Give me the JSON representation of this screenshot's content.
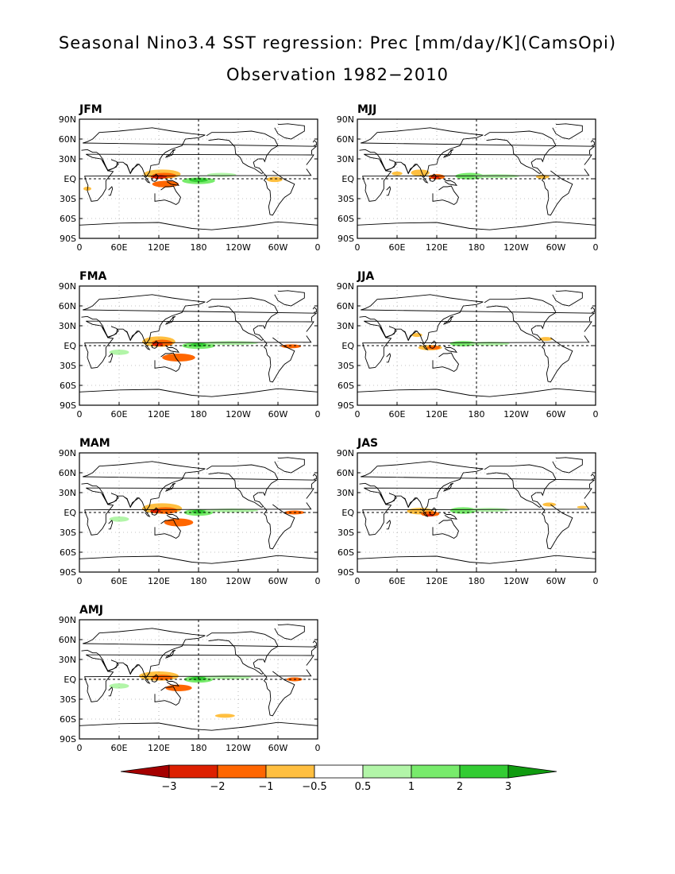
{
  "title": "Seasonal Nino3.4 SST regression: Prec [mm/day/K](CamsOpi)",
  "subtitle": "Observation 1982−2010",
  "lat_labels": [
    "90N",
    "60N",
    "30N",
    "EQ",
    "30S",
    "60S",
    "90S"
  ],
  "lon_labels": [
    "0",
    "60E",
    "120E",
    "180",
    "120W",
    "60W",
    "0"
  ],
  "panels": [
    {
      "season": "JFM"
    },
    {
      "season": "MJJ"
    },
    {
      "season": "FMA"
    },
    {
      "season": "JJA"
    },
    {
      "season": "MAM"
    },
    {
      "season": "JAS"
    },
    {
      "season": "AMJ"
    }
  ],
  "colorbar": {
    "labels": [
      "−3",
      "−2",
      "−1",
      "−0.5",
      "0.5",
      "1",
      "2",
      "3"
    ],
    "colors": [
      "#a50000",
      "#dd2000",
      "#ff6600",
      "#ffbf40",
      "#ffffff",
      "#b2f5a8",
      "#78eb6c",
      "#33cc33",
      "#109b10"
    ]
  },
  "colors": {
    "neg_strong": "#dd2000",
    "neg_mid": "#ff6600",
    "neg_weak": "#ffbf40",
    "pos_weak": "#b2f5a8",
    "pos_mid": "#78eb6c",
    "pos_strong": "#33cc33",
    "pos_dark": "#109b10"
  }
}
